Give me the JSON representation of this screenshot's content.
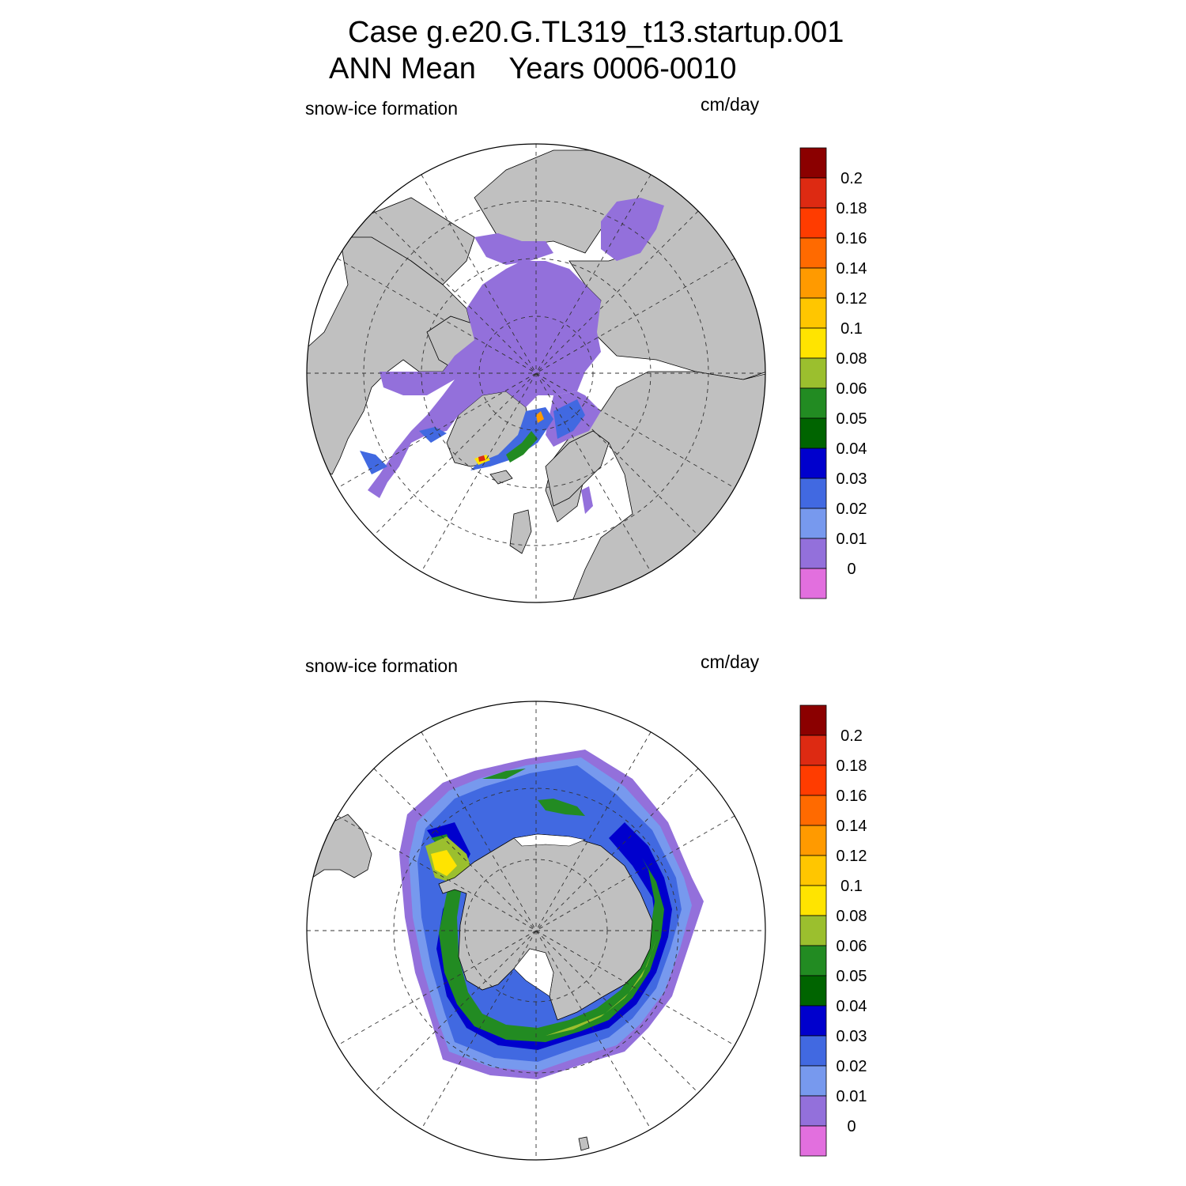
{
  "title": {
    "line1": "Case g.e20.G.TL319_t13.startup.001",
    "line2": "ANN Mean    Years 0006-0010"
  },
  "panels": [
    {
      "id": "arctic",
      "hemisphere": "Northern",
      "label_left": "snow-ice formation",
      "label_right": "cm/day",
      "dominant_values": "0-0.01 over most of the Arctic; 0.03-0.2 locally along the Greenland and Barents coasts"
    },
    {
      "id": "antarctic",
      "hemisphere": "Southern",
      "label_left": "snow-ice formation",
      "label_right": "cm/day",
      "dominant_values": "0.01-0.06 in a ring around Antarctica; up to 0.08-0.1 in the Bellingshausen Sea"
    }
  ],
  "colorbar": {
    "labels": [
      "0.2",
      "0.18",
      "0.16",
      "0.14",
      "0.12",
      "0.1",
      "0.08",
      "0.06",
      "0.05",
      "0.04",
      "0.03",
      "0.02",
      "0.01",
      "0"
    ],
    "colors": [
      "#8b0000",
      "#dd2a12",
      "#ff3c00",
      "#ff6a00",
      "#ff9a00",
      "#ffc600",
      "#ffe400",
      "#9bbf2e",
      "#228b22",
      "#006400",
      "#0000cd",
      "#4169e1",
      "#7799ee",
      "#9370db",
      "#e26fde"
    ]
  },
  "chart_data": {
    "type": "heatmap",
    "title": "Case g.e20.G.TL319_t13.startup.001 ANN Mean Years 0006-0010",
    "variable": "snow-ice formation",
    "units": "cm/day",
    "levels": [
      0,
      0.01,
      0.02,
      0.03,
      0.04,
      0.05,
      0.06,
      0.08,
      0.1,
      0.12,
      0.14,
      0.16,
      0.18,
      0.2
    ],
    "projection": "polar stereographic",
    "panels": [
      "Arctic (Northern Hemisphere)",
      "Antarctic (Southern Hemisphere)"
    ]
  },
  "colors": {
    "land": "#c0c0c0",
    "ocean": "#ffffff"
  }
}
